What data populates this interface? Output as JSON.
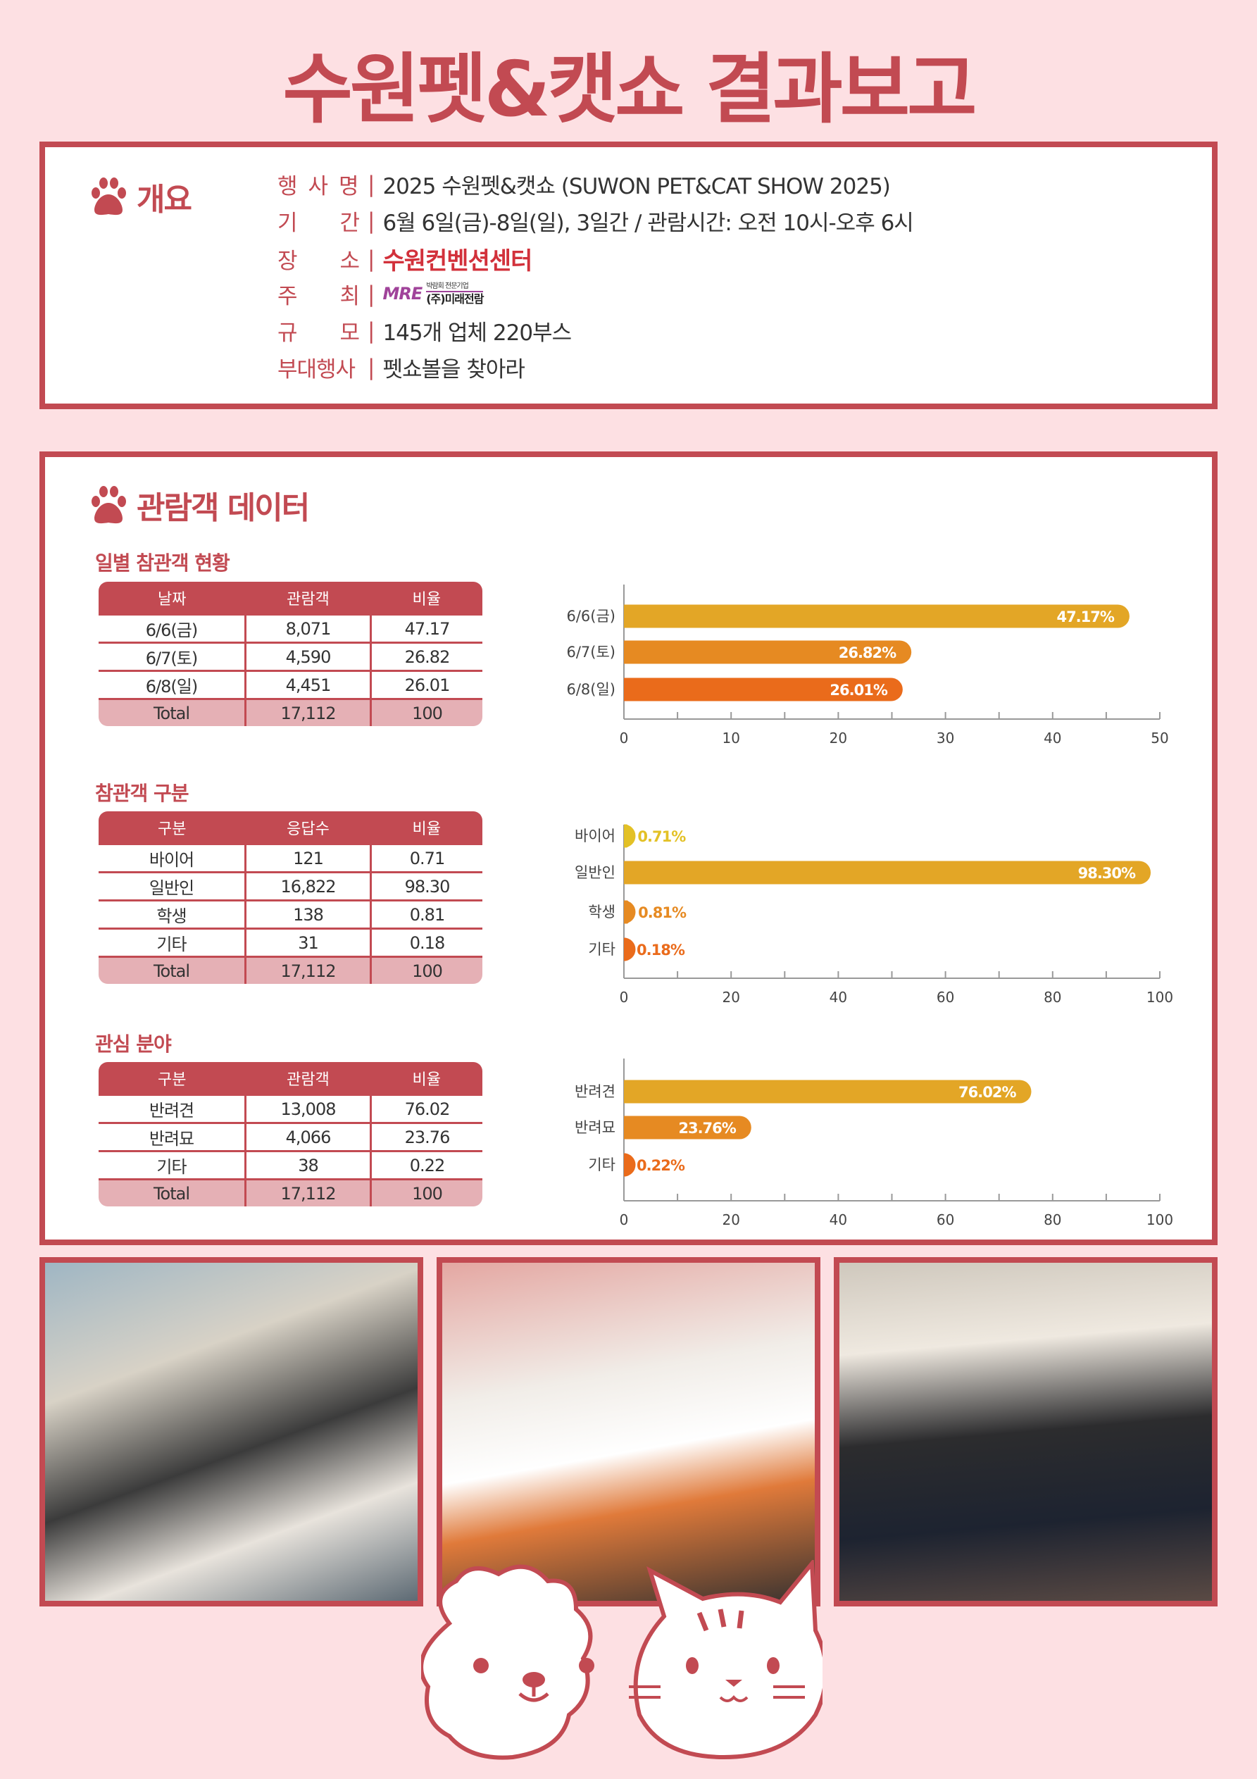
{
  "title": "수원펫&캣쇼 결과보고",
  "overview": {
    "heading": "개요",
    "rows": [
      {
        "label": "행사명",
        "value": "2025 수원펫&캣쇼 (SUWON PET&CAT SHOW 2025)"
      },
      {
        "label": "기간",
        "value": "6월 6일(금)-8일(일), 3일간 / 관람시간: 오전 10시-오후 6시"
      },
      {
        "label": "장소",
        "value": "수원컨벤션센터"
      },
      {
        "label": "주최",
        "value": "",
        "logo": {
          "mark": "MRE",
          "tagline": "박람회 전문기업",
          "name": "(주)미래전람"
        }
      },
      {
        "label": "규모",
        "value": "145개 업체 220부스"
      },
      {
        "label": "부대행사",
        "value": "펫쇼볼을 찾아라"
      }
    ],
    "separator": "|"
  },
  "visitor": {
    "heading": "관람객 데이터",
    "tables": [
      {
        "title": "일별 참관객 현황",
        "headers": [
          "날짜",
          "관람객",
          "비율"
        ],
        "rows": [
          [
            "6/6(금)",
            "8,071",
            "47.17"
          ],
          [
            "6/7(토)",
            "4,590",
            "26.82"
          ],
          [
            "6/8(일)",
            "4,451",
            "26.01"
          ]
        ],
        "total": [
          "Total",
          "17,112",
          "100"
        ]
      },
      {
        "title": "참관객 구분",
        "headers": [
          "구분",
          "응답수",
          "비율"
        ],
        "rows": [
          [
            "바이어",
            "121",
            "0.71"
          ],
          [
            "일반인",
            "16,822",
            "98.30"
          ],
          [
            "학생",
            "138",
            "0.81"
          ],
          [
            "기타",
            "31",
            "0.18"
          ]
        ],
        "total": [
          "Total",
          "17,112",
          "100"
        ]
      },
      {
        "title": "관심 분야",
        "headers": [
          "구분",
          "관람객",
          "비율"
        ],
        "rows": [
          [
            "반려견",
            "13,008",
            "76.02"
          ],
          [
            "반려묘",
            "4,066",
            "23.76"
          ],
          [
            "기타",
            "38",
            "0.22"
          ]
        ],
        "total": [
          "Total",
          "17,112",
          "100"
        ]
      }
    ]
  },
  "chart_data": [
    {
      "type": "bar",
      "orientation": "horizontal",
      "categories": [
        "6/6(금)",
        "6/7(토)",
        "6/8(일)"
      ],
      "values": [
        47.17,
        26.82,
        26.01
      ],
      "labels": [
        "47.17%",
        "26.82%",
        "26.01%"
      ],
      "colors": [
        "#E3A626",
        "#E68A22",
        "#EA6B1B"
      ],
      "xlim": [
        0,
        50
      ],
      "ticks": [
        0,
        10,
        20,
        30,
        40,
        50
      ],
      "grid": false
    },
    {
      "type": "bar",
      "orientation": "horizontal",
      "categories": [
        "바이어",
        "일반인",
        "학생",
        "기타"
      ],
      "values": [
        0.71,
        98.3,
        0.81,
        0.18
      ],
      "labels": [
        "0.71%",
        "98.30%",
        "0.81%",
        "0.18%"
      ],
      "colors": [
        "#E3C126",
        "#E3A626",
        "#E68A22",
        "#EA6B1B"
      ],
      "xlim": [
        0,
        100
      ],
      "ticks": [
        0,
        20,
        40,
        60,
        80,
        100
      ],
      "grid": false
    },
    {
      "type": "bar",
      "orientation": "horizontal",
      "categories": [
        "반려견",
        "반려묘",
        "기타"
      ],
      "values": [
        76.02,
        23.76,
        0.22
      ],
      "labels": [
        "76.02%",
        "23.76%",
        "0.22%"
      ],
      "colors": [
        "#E3A626",
        "#E68A22",
        "#EA6B1B"
      ],
      "xlim": [
        0,
        100
      ],
      "ticks": [
        0,
        20,
        40,
        60,
        80,
        100
      ],
      "grid": false
    }
  ],
  "colors": {
    "brand": "#C24A52",
    "background": "#FDE0E3",
    "total_row": "#E5B0B5"
  }
}
